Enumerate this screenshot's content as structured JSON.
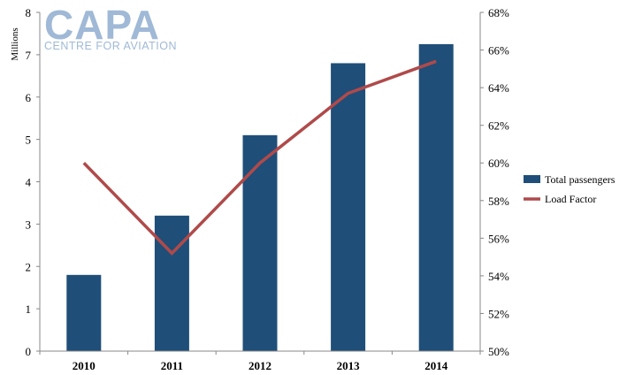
{
  "logo": {
    "main": "CAPA",
    "sub": "CENTRE FOR AVIATION"
  },
  "chart_data": {
    "type": "bar",
    "categories": [
      "2010",
      "2011",
      "2012",
      "2013",
      "2014"
    ],
    "series": [
      {
        "name": "Total passengers",
        "type": "bar",
        "axis": "left",
        "color": "#1f4e79",
        "values": [
          1.8,
          3.2,
          5.1,
          6.8,
          7.25
        ]
      },
      {
        "name": "Load Factor",
        "type": "line",
        "axis": "right",
        "color": "#b04a4a",
        "values": [
          60.0,
          55.2,
          60.0,
          63.7,
          65.4
        ]
      }
    ],
    "ylabel": "Millions",
    "ylim": [
      0,
      8
    ],
    "yticks": [
      "0",
      "1",
      "2",
      "3",
      "4",
      "5",
      "6",
      "7",
      "8"
    ],
    "y2lim": [
      50,
      68
    ],
    "y2ticks": [
      "50%",
      "52%",
      "54%",
      "56%",
      "58%",
      "60%",
      "62%",
      "64%",
      "66%",
      "68%"
    ],
    "legend_position": "right",
    "grid": false
  }
}
